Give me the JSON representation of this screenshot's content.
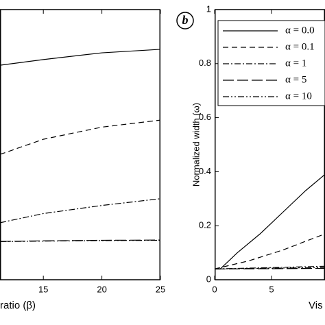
{
  "chart_data": [
    {
      "type": "line",
      "x_label": "ratio (β)",
      "xlim": [
        11.3,
        25
      ],
      "xticks": [
        15,
        20,
        25
      ],
      "ylim": [
        0,
        1
      ],
      "series": [
        {
          "color": "#000000",
          "dash": "solid",
          "x": [
            11.3,
            15,
            20,
            25
          ],
          "values": [
            0.794,
            0.815,
            0.84,
            0.853
          ]
        },
        {
          "color": "#000000",
          "dash": "dashed",
          "x": [
            11.3,
            15,
            20,
            25
          ],
          "values": [
            0.464,
            0.52,
            0.565,
            0.591
          ]
        },
        {
          "color": "#000000",
          "dash": "dashdot",
          "x": [
            11.3,
            15,
            20,
            25
          ],
          "values": [
            0.211,
            0.245,
            0.275,
            0.3
          ]
        },
        {
          "color": "#000000",
          "dash": "longdash",
          "x": [
            11.3,
            15,
            20,
            25
          ],
          "values": [
            0.142,
            0.144,
            0.146,
            0.147
          ]
        },
        {
          "color": "#000000",
          "dash": "dashdotdot",
          "x": [
            11.3,
            15,
            20,
            25
          ],
          "values": [
            0.141,
            0.143,
            0.145,
            0.146
          ]
        }
      ]
    },
    {
      "type": "line",
      "panel_label": "b",
      "x_label": "Vis",
      "y_label": "Normalized width (ω)",
      "xlim": [
        0,
        9.7
      ],
      "xticks": [
        0,
        5
      ],
      "ylim": [
        0,
        1
      ],
      "yticks": [
        0,
        0.2,
        0.4,
        0.6,
        0.8,
        1
      ],
      "series": [
        {
          "name": "α = 0.0",
          "color": "#000000",
          "dash": "solid",
          "x": [
            0.5,
            2,
            4,
            6,
            8,
            9.7
          ],
          "values": [
            0.04,
            0.1,
            0.17,
            0.25,
            0.33,
            0.39
          ]
        },
        {
          "name": "α = 0.1",
          "color": "#000000",
          "dash": "dashed",
          "x": [
            0,
            3,
            6,
            9.7
          ],
          "values": [
            0.04,
            0.07,
            0.11,
            0.17
          ]
        },
        {
          "name": "α = 1",
          "color": "#000000",
          "dash": "dashdot",
          "x": [
            0,
            5,
            9.7
          ],
          "values": [
            0.04,
            0.045,
            0.05
          ]
        },
        {
          "name": "α = 5",
          "color": "#000000",
          "dash": "longdash",
          "x": [
            0,
            5,
            9.7
          ],
          "values": [
            0.04,
            0.041,
            0.042
          ]
        },
        {
          "name": "α = 10",
          "color": "#000000",
          "dash": "dashdotdot",
          "x": [
            0,
            5,
            9.7
          ],
          "values": [
            0.04,
            0.043,
            0.045
          ]
        }
      ]
    }
  ]
}
